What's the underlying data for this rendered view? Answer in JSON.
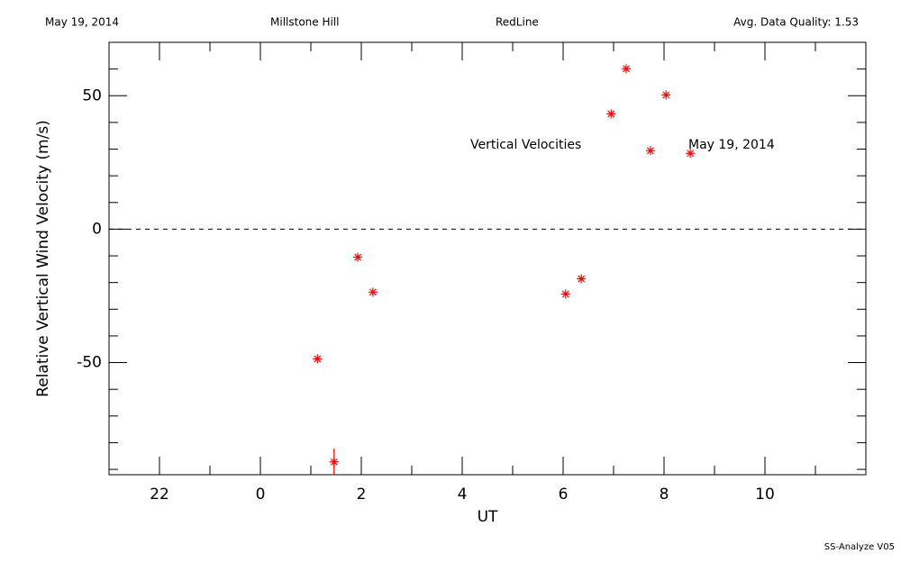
{
  "header": {
    "date": "May 19, 2014",
    "site": "Millstone Hill",
    "instrument": "RedLine",
    "quality": "Avg. Data Quality: 1.53"
  },
  "footer": "SS-Analyze V05",
  "chart_data": {
    "type": "scatter",
    "xlabel": "UT",
    "ylabel": "Relative Vertical Wind Velocity (m/s)",
    "annotations": [
      "Vertical Velocities",
      "May 19, 2014"
    ],
    "x": [
      1.13,
      1.46,
      1.93,
      2.23,
      6.05,
      6.36,
      6.95,
      7.25,
      7.73,
      8.04,
      8.52
    ],
    "values": [
      -48.6,
      -87.2,
      -10.5,
      -23.6,
      -24.3,
      -18.6,
      43.2,
      60.1,
      29.4,
      50.3,
      28.4
    ],
    "yerr": [
      null,
      5,
      null,
      null,
      null,
      null,
      null,
      null,
      null,
      null,
      null
    ],
    "color": "#ff0000",
    "xlim": [
      -3,
      12
    ],
    "ylim": [
      -92,
      70
    ],
    "xticks": [
      {
        "value": -2,
        "label": "22"
      },
      0,
      2,
      4,
      6,
      8,
      10
    ],
    "yticks": [
      -50,
      0,
      50
    ],
    "xminorticks": [
      -1,
      1,
      3,
      5,
      7,
      9,
      11
    ],
    "yminorticks": [
      -90,
      -80,
      -70,
      -60,
      -40,
      -30,
      -20,
      -10,
      10,
      20,
      30,
      40,
      60
    ],
    "reference_line": 0
  }
}
